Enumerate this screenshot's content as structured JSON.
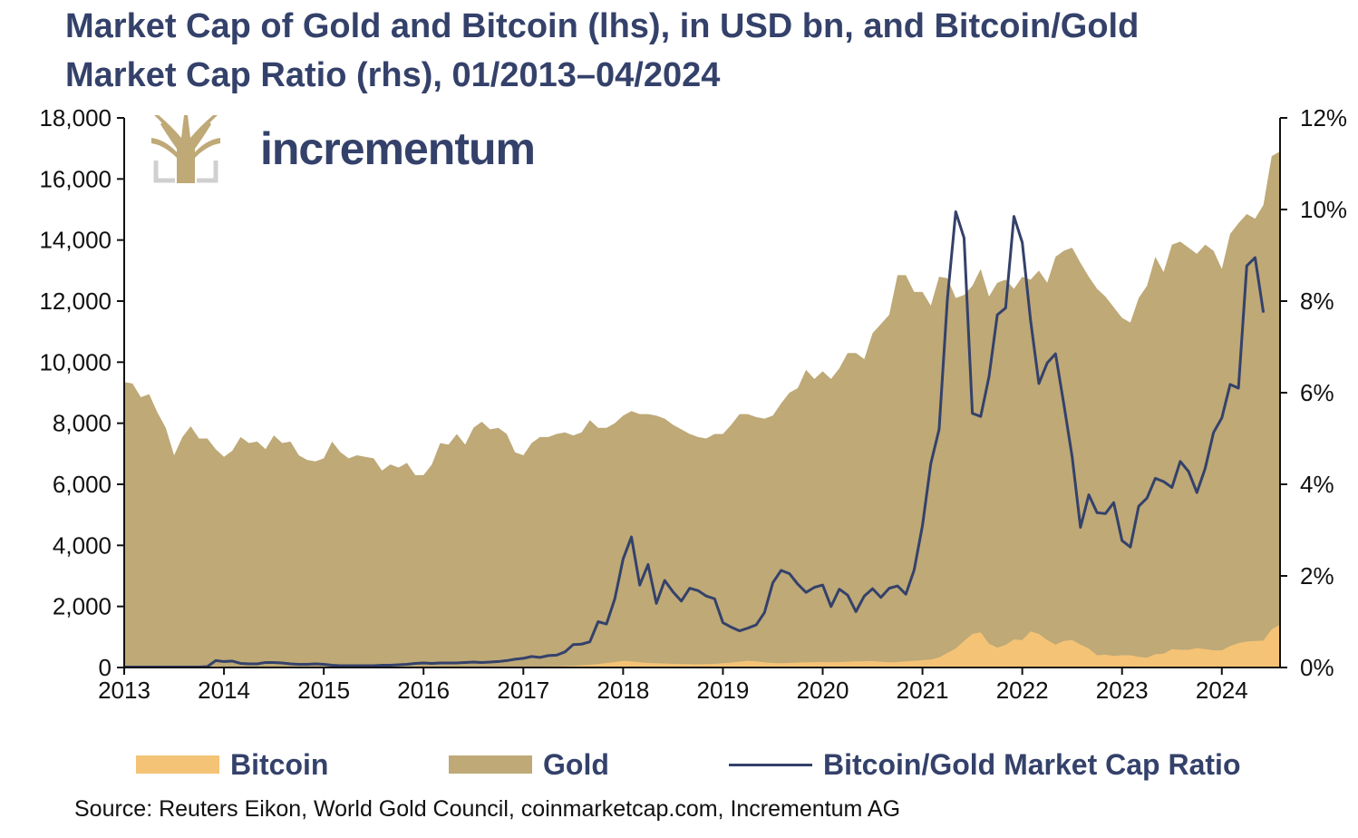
{
  "title_line1": "Market Cap of Gold and Bitcoin (lhs), in USD bn, and Bitcoin/Gold",
  "title_line2": "Market Cap Ratio (rhs), 01/2013–04/2024",
  "logo_text": "incrementum",
  "source": "Source: Reuters Eikon, World Gold Council, coinmarketcap.com, Incrementum AG",
  "colors": {
    "gold": "#bea977",
    "bitcoin": "#f5c375",
    "ratio": "#34416a",
    "axis": "#111111"
  },
  "legend": [
    {
      "label": "Bitcoin",
      "kind": "area",
      "color": "#f5c375"
    },
    {
      "label": "Gold",
      "kind": "area",
      "color": "#bea977"
    },
    {
      "label": "Bitcoin/Gold Market Cap Ratio",
      "kind": "line",
      "color": "#34416a"
    }
  ],
  "chart_data": {
    "type": "area",
    "x_start": "2013-01",
    "x_end": "2024-04",
    "x_tick_labels": [
      "2013",
      "2014",
      "2015",
      "2016",
      "2017",
      "2018",
      "2019",
      "2020",
      "2021",
      "2022",
      "2023",
      "2024"
    ],
    "y_left_ticks": [
      "0",
      "2,000",
      "4,000",
      "6,000",
      "8,000",
      "10,000",
      "12,000",
      "14,000",
      "16,000",
      "18,000"
    ],
    "y_right_ticks": [
      "0%",
      "2%",
      "4%",
      "6%",
      "8%",
      "10%",
      "12%"
    ],
    "y_left_lim": [
      0,
      18000
    ],
    "y_right_lim": [
      0,
      12
    ],
    "grid": false,
    "legend_position": "bottom",
    "series": [
      {
        "name": "Gold",
        "axis": "left",
        "type": "area",
        "values": [
          9350,
          9300,
          8850,
          8950,
          8350,
          7850,
          6950,
          7550,
          7900,
          7500,
          7500,
          7150,
          6900,
          7100,
          7550,
          7350,
          7400,
          7150,
          7600,
          7350,
          7400,
          6950,
          6800,
          6750,
          6850,
          7400,
          7050,
          6850,
          6950,
          6900,
          6850,
          6450,
          6650,
          6550,
          6700,
          6300,
          6300,
          6650,
          7350,
          7300,
          7650,
          7300,
          7850,
          8050,
          7800,
          7850,
          7650,
          7050,
          6950,
          7350,
          7550,
          7550,
          7650,
          7700,
          7600,
          7700,
          8100,
          7850,
          7850,
          8000,
          8250,
          8400,
          8300,
          8300,
          8250,
          8150,
          7950,
          7800,
          7650,
          7550,
          7500,
          7650,
          7650,
          7950,
          8300,
          8300,
          8200,
          8150,
          8250,
          8650,
          9000,
          9150,
          9750,
          9450,
          9700,
          9450,
          9800,
          10300,
          10300,
          10100,
          10950,
          11250,
          11550,
          12850,
          12850,
          12300,
          12300,
          11850,
          12800,
          12750,
          12100,
          12200,
          12500,
          13050,
          12150,
          12600,
          12700,
          12400,
          12800,
          12700,
          13000,
          12600,
          13450,
          13650,
          13750,
          13250,
          12800,
          12400,
          12150,
          11800,
          11450,
          11300,
          12100,
          12500,
          13450,
          12950,
          13850,
          13950,
          13750,
          13550,
          13850,
          13650,
          13050,
          14200,
          14550,
          14850,
          14700,
          15150,
          16750,
          16900
        ]
      },
      {
        "name": "Bitcoin",
        "axis": "left",
        "type": "area",
        "values": [
          0,
          0,
          0,
          0,
          0,
          0,
          0,
          0,
          0,
          0,
          10,
          50,
          25,
          15,
          10,
          10,
          10,
          8,
          8,
          8,
          8,
          6,
          6,
          5,
          5,
          5,
          5,
          4,
          4,
          4,
          4,
          5,
          5,
          5,
          5,
          6,
          7,
          7,
          8,
          9,
          9,
          9,
          10,
          9,
          9,
          10,
          12,
          14,
          16,
          20,
          25,
          32,
          38,
          45,
          55,
          70,
          90,
          110,
          150,
          180,
          220,
          200,
          170,
          150,
          140,
          130,
          120,
          115,
          110,
          105,
          110,
          120,
          140,
          160,
          190,
          220,
          200,
          170,
          150,
          140,
          150,
          165,
          170,
          175,
          180,
          175,
          180,
          190,
          200,
          205,
          210,
          190,
          170,
          180,
          200,
          220,
          240,
          260,
          330,
          480,
          620,
          870,
          1100,
          1150,
          780,
          650,
          740,
          920,
          900,
          1180,
          1100,
          900,
          750,
          870,
          900,
          750,
          620,
          400,
          420,
          380,
          400,
          400,
          350,
          320,
          440,
          450,
          600,
          580,
          580,
          630,
          600,
          560,
          560,
          700,
          800,
          850,
          870,
          880,
          1250,
          1400
        ]
      },
      {
        "name": "Bitcoin/Gold Market Cap Ratio",
        "axis": "right",
        "type": "line",
        "values": [
          0.01,
          0.01,
          0.01,
          0.01,
          0.01,
          0.01,
          0.01,
          0.01,
          0.01,
          0.01,
          0.02,
          0.15,
          0.13,
          0.14,
          0.09,
          0.08,
          0.08,
          0.11,
          0.11,
          0.1,
          0.08,
          0.07,
          0.07,
          0.08,
          0.07,
          0.05,
          0.04,
          0.04,
          0.04,
          0.04,
          0.04,
          0.05,
          0.05,
          0.06,
          0.07,
          0.09,
          0.1,
          0.09,
          0.1,
          0.1,
          0.1,
          0.11,
          0.12,
          0.11,
          0.12,
          0.13,
          0.15,
          0.18,
          0.2,
          0.24,
          0.22,
          0.26,
          0.27,
          0.34,
          0.5,
          0.51,
          0.56,
          1.0,
          0.95,
          1.5,
          2.37,
          2.85,
          1.8,
          2.25,
          1.4,
          1.9,
          1.65,
          1.45,
          1.73,
          1.68,
          1.56,
          1.5,
          0.98,
          0.88,
          0.8,
          0.86,
          0.93,
          1.2,
          1.85,
          2.12,
          2.05,
          1.82,
          1.64,
          1.75,
          1.8,
          1.33,
          1.71,
          1.58,
          1.22,
          1.56,
          1.72,
          1.53,
          1.73,
          1.78,
          1.6,
          2.13,
          3.1,
          4.45,
          5.2,
          8.05,
          9.95,
          9.38,
          5.55,
          5.48,
          6.35,
          7.7,
          7.85,
          9.85,
          9.28,
          7.58,
          6.2,
          6.65,
          6.85,
          5.75,
          4.6,
          3.06,
          3.77,
          3.38,
          3.36,
          3.6,
          2.77,
          2.63,
          3.52,
          3.7,
          4.13,
          4.06,
          3.93,
          4.5,
          4.28,
          3.82,
          4.35,
          5.13,
          5.45,
          6.18,
          6.1,
          8.77,
          8.95,
          7.75
        ]
      }
    ]
  }
}
